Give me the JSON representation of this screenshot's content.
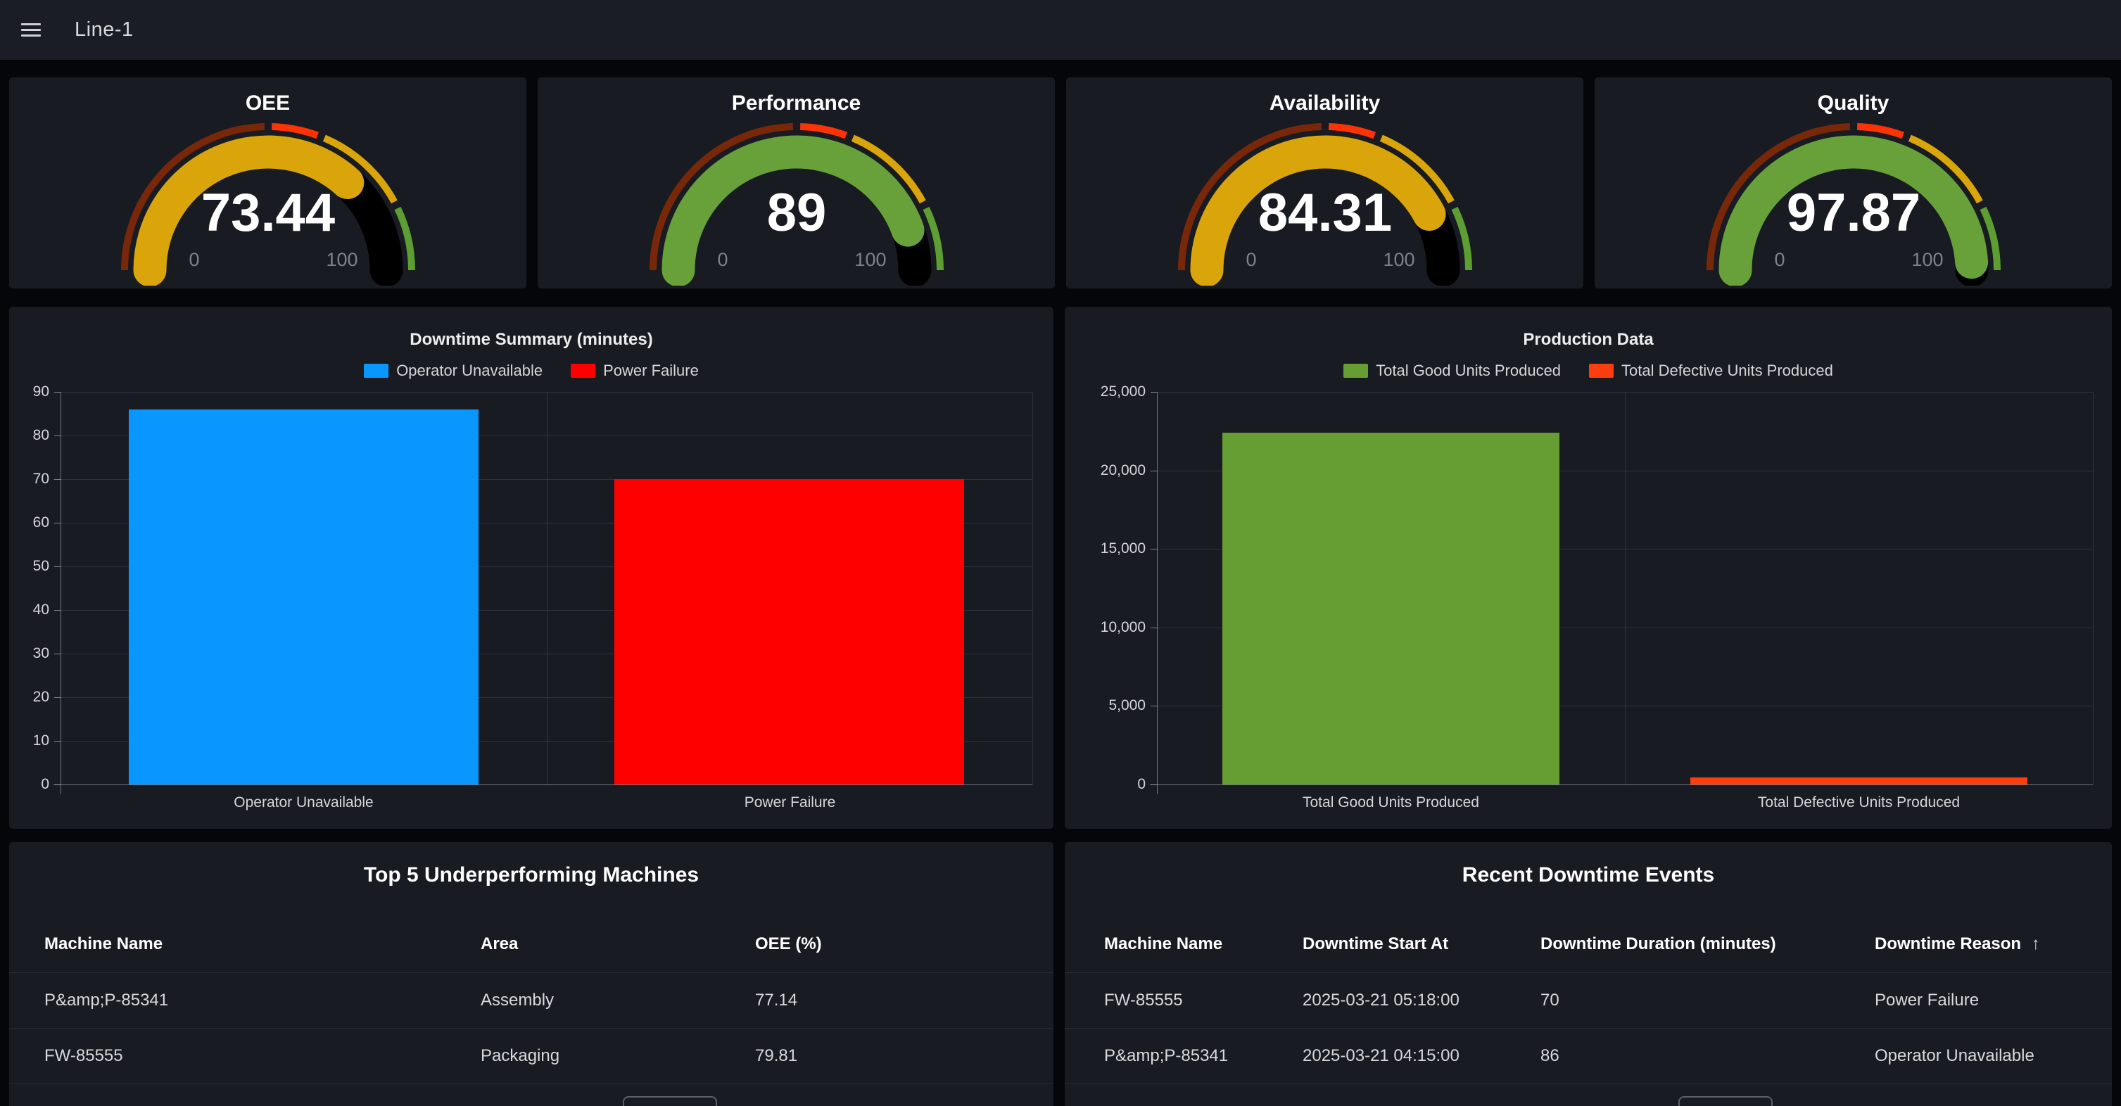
{
  "topbar": {
    "title": "Line-1"
  },
  "gauges": [
    {
      "title": "OEE",
      "value": "73.44",
      "value_num": 73.44,
      "min": "0",
      "max": "100",
      "color": "#d9a50b"
    },
    {
      "title": "Performance",
      "value": "89",
      "value_num": 89,
      "min": "0",
      "max": "100",
      "color": "#68a03a"
    },
    {
      "title": "Availability",
      "value": "84.31",
      "value_num": 84.31,
      "min": "0",
      "max": "100",
      "color": "#d9a50b"
    },
    {
      "title": "Quality",
      "value": "97.87",
      "value_num": 97.87,
      "min": "0",
      "max": "100",
      "color": "#68a03a"
    }
  ],
  "gauge_thresholds": [
    {
      "from": 0,
      "color": "#782808"
    },
    {
      "from": 50,
      "color": "#fb3305"
    },
    {
      "from": 62,
      "color": "#d9a50b"
    },
    {
      "from": 85,
      "color": "#5c9e31"
    }
  ],
  "chart_data": [
    {
      "type": "bar",
      "title": "Downtime Summary (minutes)",
      "categories": [
        "Operator Unavailable",
        "Power Failure"
      ],
      "values": [
        86,
        70
      ],
      "colors": [
        "#0996ff",
        "#ff0000"
      ],
      "ylim": [
        0,
        90
      ],
      "ytick_step": 10,
      "ytick_labels": [
        "0",
        "10",
        "20",
        "30",
        "40",
        "50",
        "60",
        "70",
        "80",
        "90"
      ],
      "legend": [
        "Operator Unavailable",
        "Power Failure"
      ],
      "legend_position": "top",
      "grid": true,
      "xlabel": "",
      "ylabel": ""
    },
    {
      "type": "bar",
      "title": "Production Data",
      "categories": [
        "Total Good Units Produced",
        "Total Defective Units Produced"
      ],
      "values": [
        22400,
        450
      ],
      "colors": [
        "#669e33",
        "#fc3d0d"
      ],
      "ylim": [
        0,
        25000
      ],
      "ytick_step": 5000,
      "ytick_labels": [
        "0",
        "5,000",
        "10,000",
        "15,000",
        "20,000",
        "25,000"
      ],
      "legend": [
        "Total Good Units Produced",
        "Total Defective Units Produced"
      ],
      "legend_position": "top",
      "grid": true,
      "xlabel": "",
      "ylabel": ""
    }
  ],
  "tables": {
    "left": {
      "title": "Top 5 Underperforming Machines",
      "columns": [
        "Machine Name",
        "Area",
        "OEE (%)"
      ],
      "rows": [
        [
          "P&amp;P-85341",
          "Assembly",
          "77.14"
        ],
        [
          "FW-85555",
          "Packaging",
          "79.81"
        ]
      ]
    },
    "right": {
      "title": "Recent Downtime Events",
      "columns": [
        "Machine Name",
        "Downtime Start At",
        "Downtime Duration (minutes)",
        "Downtime Reason"
      ],
      "sort": {
        "column_index": 3,
        "direction": "asc",
        "icon": "arrow-up-icon",
        "glyph": "↑"
      },
      "rows": [
        [
          "FW-85555",
          "2025-03-21 05:18:00",
          "70",
          "Power Failure"
        ],
        [
          "P&amp;P-85341",
          "2025-03-21 04:15:00",
          "86",
          "Operator Unavailable"
        ]
      ]
    }
  }
}
